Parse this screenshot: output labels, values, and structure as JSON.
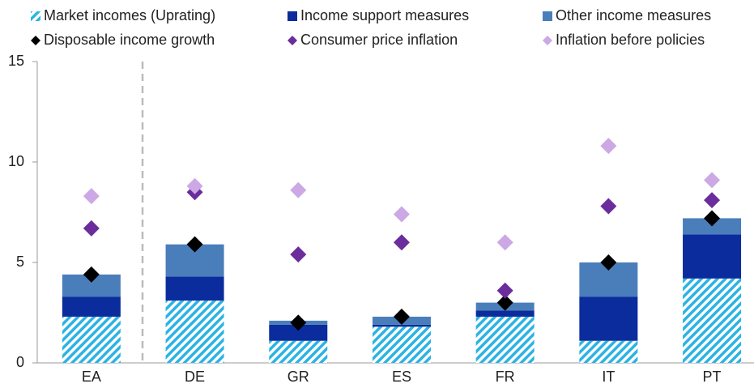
{
  "chart_data": {
    "type": "bar",
    "stacked": true,
    "categories": [
      "EA",
      "DE",
      "GR",
      "ES",
      "FR",
      "IT",
      "PT"
    ],
    "series": [
      {
        "name": "Market incomes (Uprating)",
        "type": "bar",
        "pattern": "hatched",
        "color": "#2bb3e3",
        "values": [
          2.3,
          3.1,
          1.1,
          1.8,
          2.3,
          1.1,
          4.2
        ]
      },
      {
        "name": "Income support measures",
        "type": "bar",
        "color": "#0b2c9c",
        "values": [
          1.0,
          1.2,
          0.8,
          0.1,
          0.3,
          2.2,
          2.2
        ]
      },
      {
        "name": "Other income measures",
        "type": "bar",
        "color": "#4a7ebb",
        "values": [
          1.1,
          1.6,
          0.2,
          0.4,
          0.4,
          1.7,
          0.8
        ]
      },
      {
        "name": "Disposable income growth",
        "type": "scatter",
        "marker": "diamond",
        "color": "#000000",
        "values": [
          4.4,
          5.9,
          2.0,
          2.3,
          3.0,
          5.0,
          7.2
        ]
      },
      {
        "name": "Consumer price inflation",
        "type": "scatter",
        "marker": "diamond",
        "color": "#6b2c9c",
        "values": [
          6.7,
          8.5,
          5.4,
          6.0,
          3.6,
          7.8,
          8.1
        ]
      },
      {
        "name": "Inflation before policies",
        "type": "scatter",
        "marker": "diamond",
        "color": "#cca8e4",
        "values": [
          8.3,
          8.8,
          8.6,
          7.4,
          6.0,
          10.8,
          9.1
        ]
      }
    ],
    "ylim": [
      0,
      15
    ],
    "yticks": [
      0,
      5,
      10,
      15
    ],
    "grid": false
  }
}
